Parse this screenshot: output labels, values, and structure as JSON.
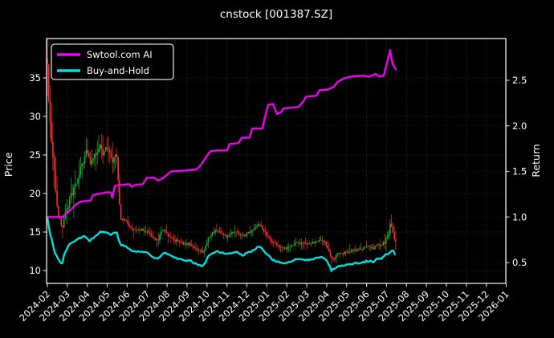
{
  "title": "cnstock [001387.SZ]",
  "colors": {
    "background": "#000000",
    "text": "#ffffff",
    "spine": "#ffffff",
    "tick": "#cccccc",
    "grid": "#a0a0a0",
    "ai_line": "#f000f0",
    "buyhold_line": "#00dede",
    "candle_up": "#12b42f",
    "candle_down": "#f93030"
  },
  "legend": {
    "items": [
      {
        "label": "Swtool.com AI",
        "color": "#f000f0"
      },
      {
        "label": "Buy-and-Hold",
        "color": "#00dede"
      }
    ]
  },
  "chart_data": {
    "type": "line",
    "title": "cnstock [001387.SZ]",
    "x_axis": {
      "tick_labels": [
        "2024-02",
        "2024-03",
        "2024-04",
        "2024-05",
        "2024-06",
        "2024-07",
        "2024-08",
        "2024-09",
        "2024-10",
        "2024-11",
        "2024-12",
        "2025-01",
        "2025-02",
        "2025-03",
        "2025-04",
        "2025-05",
        "2025-06",
        "2025-07",
        "2025-08",
        "2025-09",
        "2025-10",
        "2025-11",
        "2025-12",
        "2026-01"
      ],
      "rotation_deg": 45,
      "data_range": [
        "2024-02",
        "2025-08"
      ]
    },
    "left_axis": {
      "label": "Price",
      "ticks": [
        10,
        15,
        20,
        25,
        30,
        35
      ],
      "range": [
        8.3,
        40.1
      ]
    },
    "right_axis": {
      "label": "Return",
      "ticks": [
        0.5,
        1.0,
        1.5,
        2.0,
        2.5
      ],
      "range": [
        0.27,
        2.96
      ]
    },
    "grid": true,
    "legend_position": "upper-left",
    "series": [
      {
        "name": "Swtool.com AI",
        "type": "line",
        "axis": "right",
        "color": "#f000f0",
        "points": [
          [
            0,
            1.0
          ],
          [
            0.76,
            1.0
          ],
          [
            1.17,
            1.08
          ],
          [
            1.45,
            1.14
          ],
          [
            1.69,
            1.17
          ],
          [
            2.17,
            1.18
          ],
          [
            2.29,
            1.24
          ],
          [
            2.98,
            1.27
          ],
          [
            3.18,
            1.27
          ],
          [
            3.26,
            1.21
          ],
          [
            3.38,
            1.34
          ],
          [
            3.66,
            1.35
          ],
          [
            4.1,
            1.36
          ],
          [
            4.23,
            1.33
          ],
          [
            4.39,
            1.35
          ],
          [
            4.79,
            1.36
          ],
          [
            4.99,
            1.43
          ],
          [
            5.35,
            1.43
          ],
          [
            5.55,
            1.4
          ],
          [
            5.83,
            1.43
          ],
          [
            6.2,
            1.5
          ],
          [
            6.92,
            1.51
          ],
          [
            7.48,
            1.52
          ],
          [
            7.69,
            1.57
          ],
          [
            7.93,
            1.65
          ],
          [
            8.17,
            1.72
          ],
          [
            8.49,
            1.73
          ],
          [
            9.01,
            1.73
          ],
          [
            9.13,
            1.8
          ],
          [
            9.58,
            1.81
          ],
          [
            9.74,
            1.87
          ],
          [
            10.14,
            1.87
          ],
          [
            10.26,
            1.97
          ],
          [
            10.78,
            1.97
          ],
          [
            10.9,
            2.09
          ],
          [
            11.07,
            2.23
          ],
          [
            11.31,
            2.24
          ],
          [
            11.51,
            2.13
          ],
          [
            11.71,
            2.15
          ],
          [
            11.83,
            2.19
          ],
          [
            12.31,
            2.2
          ],
          [
            12.6,
            2.21
          ],
          [
            12.84,
            2.27
          ],
          [
            12.96,
            2.32
          ],
          [
            13.48,
            2.33
          ],
          [
            13.64,
            2.39
          ],
          [
            14.08,
            2.4
          ],
          [
            14.37,
            2.43
          ],
          [
            14.53,
            2.48
          ],
          [
            14.85,
            2.52
          ],
          [
            15.21,
            2.54
          ],
          [
            15.81,
            2.55
          ],
          [
            16.14,
            2.54
          ],
          [
            16.46,
            2.57
          ],
          [
            16.62,
            2.54
          ],
          [
            16.86,
            2.55
          ],
          [
            17.06,
            2.72
          ],
          [
            17.18,
            2.83
          ],
          [
            17.3,
            2.68
          ],
          [
            17.46,
            2.62
          ]
        ]
      },
      {
        "name": "Buy-and-Hold",
        "type": "line",
        "axis": "right",
        "color": "#00dede",
        "points": [
          [
            0,
            1.0
          ],
          [
            0.04,
            0.93
          ],
          [
            0.12,
            0.83
          ],
          [
            0.24,
            0.74
          ],
          [
            0.36,
            0.62
          ],
          [
            0.52,
            0.54
          ],
          [
            0.64,
            0.5
          ],
          [
            0.76,
            0.5
          ],
          [
            0.85,
            0.59
          ],
          [
            1.05,
            0.68
          ],
          [
            1.17,
            0.72
          ],
          [
            1.57,
            0.76
          ],
          [
            1.85,
            0.8
          ],
          [
            2.13,
            0.74
          ],
          [
            2.37,
            0.78
          ],
          [
            2.66,
            0.84
          ],
          [
            2.94,
            0.83
          ],
          [
            3.18,
            0.81
          ],
          [
            3.46,
            0.84
          ],
          [
            3.66,
            0.69
          ],
          [
            3.94,
            0.68
          ],
          [
            4.18,
            0.63
          ],
          [
            4.47,
            0.62
          ],
          [
            4.75,
            0.62
          ],
          [
            4.99,
            0.61
          ],
          [
            5.27,
            0.56
          ],
          [
            5.55,
            0.54
          ],
          [
            5.75,
            0.59
          ],
          [
            5.87,
            0.62
          ],
          [
            6.08,
            0.59
          ],
          [
            6.36,
            0.56
          ],
          [
            6.6,
            0.54
          ],
          [
            6.88,
            0.52
          ],
          [
            7.16,
            0.52
          ],
          [
            7.4,
            0.49
          ],
          [
            7.6,
            0.48
          ],
          [
            7.81,
            0.46
          ],
          [
            8.09,
            0.58
          ],
          [
            8.29,
            0.61
          ],
          [
            8.49,
            0.62
          ],
          [
            8.69,
            0.61
          ],
          [
            8.97,
            0.59
          ],
          [
            9.21,
            0.61
          ],
          [
            9.5,
            0.62
          ],
          [
            9.62,
            0.59
          ],
          [
            9.82,
            0.58
          ],
          [
            10.02,
            0.61
          ],
          [
            10.3,
            0.63
          ],
          [
            10.62,
            0.68
          ],
          [
            10.82,
            0.63
          ],
          [
            11.02,
            0.59
          ],
          [
            11.23,
            0.54
          ],
          [
            11.43,
            0.52
          ],
          [
            11.63,
            0.5
          ],
          [
            11.91,
            0.49
          ],
          [
            12.19,
            0.5
          ],
          [
            12.43,
            0.54
          ],
          [
            12.71,
            0.53
          ],
          [
            13.11,
            0.53
          ],
          [
            13.52,
            0.55
          ],
          [
            13.72,
            0.56
          ],
          [
            13.92,
            0.54
          ],
          [
            14.04,
            0.51
          ],
          [
            14.24,
            0.41
          ],
          [
            14.53,
            0.46
          ],
          [
            14.93,
            0.47
          ],
          [
            15.33,
            0.49
          ],
          [
            15.73,
            0.5
          ],
          [
            16.13,
            0.52
          ],
          [
            16.33,
            0.5
          ],
          [
            16.53,
            0.54
          ],
          [
            16.74,
            0.54
          ],
          [
            16.94,
            0.58
          ],
          [
            17.14,
            0.61
          ],
          [
            17.34,
            0.63
          ],
          [
            17.42,
            0.59
          ]
        ]
      },
      {
        "name": "cnstock OHLC",
        "type": "candlestick",
        "axis": "left",
        "up_color": "#12b42f",
        "down_color": "#f93030",
        "close_keypoints": [
          [
            0,
            36.5
          ],
          [
            0.05,
            33.0
          ],
          [
            0.12,
            30.0
          ],
          [
            0.2,
            27.0
          ],
          [
            0.3,
            24.0
          ],
          [
            0.4,
            21.0
          ],
          [
            0.5,
            18.5
          ],
          [
            0.6,
            16.5
          ],
          [
            0.72,
            15.2
          ],
          [
            0.85,
            16.8
          ],
          [
            1.05,
            18.5
          ],
          [
            1.17,
            19.5
          ],
          [
            1.45,
            21.5
          ],
          [
            1.7,
            23.5
          ],
          [
            1.85,
            24.5
          ],
          [
            2.0,
            25.8
          ],
          [
            2.13,
            24.0
          ],
          [
            2.37,
            24.8
          ],
          [
            2.66,
            26.3
          ],
          [
            2.8,
            25.0
          ],
          [
            2.94,
            26.0
          ],
          [
            3.1,
            25.0
          ],
          [
            3.3,
            24.0
          ],
          [
            3.46,
            25.5
          ],
          [
            3.6,
            19.5
          ],
          [
            3.66,
            16.8
          ],
          [
            3.94,
            16.5
          ],
          [
            4.18,
            15.5
          ],
          [
            4.47,
            15.3
          ],
          [
            4.75,
            15.3
          ],
          [
            4.99,
            15.0
          ],
          [
            5.27,
            14.2
          ],
          [
            5.55,
            13.8
          ],
          [
            5.7,
            15.0
          ],
          [
            5.87,
            15.3
          ],
          [
            6.08,
            14.6
          ],
          [
            6.36,
            14.0
          ],
          [
            6.6,
            13.7
          ],
          [
            6.88,
            13.4
          ],
          [
            7.16,
            13.4
          ],
          [
            7.4,
            12.9
          ],
          [
            7.6,
            12.7
          ],
          [
            7.81,
            12.4
          ],
          [
            8.09,
            14.3
          ],
          [
            8.29,
            14.9
          ],
          [
            8.49,
            15.1
          ],
          [
            8.69,
            14.9
          ],
          [
            8.97,
            14.5
          ],
          [
            9.21,
            14.9
          ],
          [
            9.5,
            15.1
          ],
          [
            9.62,
            14.6
          ],
          [
            9.82,
            14.4
          ],
          [
            10.02,
            14.9
          ],
          [
            10.3,
            15.3
          ],
          [
            10.62,
            16.0
          ],
          [
            10.82,
            15.3
          ],
          [
            11.02,
            14.6
          ],
          [
            11.23,
            13.8
          ],
          [
            11.43,
            13.4
          ],
          [
            11.63,
            13.1
          ],
          [
            11.91,
            12.9
          ],
          [
            12.19,
            13.1
          ],
          [
            12.43,
            13.7
          ],
          [
            12.71,
            13.5
          ],
          [
            13.11,
            13.5
          ],
          [
            13.52,
            13.8
          ],
          [
            13.72,
            13.9
          ],
          [
            13.92,
            13.6
          ],
          [
            14.04,
            13.1
          ],
          [
            14.24,
            11.3
          ],
          [
            14.53,
            12.1
          ],
          [
            14.93,
            12.3
          ],
          [
            15.33,
            12.6
          ],
          [
            15.73,
            12.8
          ],
          [
            16.13,
            13.1
          ],
          [
            16.33,
            12.8
          ],
          [
            16.53,
            13.3
          ],
          [
            16.74,
            13.3
          ],
          [
            16.94,
            13.8
          ],
          [
            17.14,
            15.0
          ],
          [
            17.2,
            16.2
          ],
          [
            17.28,
            15.2
          ],
          [
            17.38,
            14.0
          ],
          [
            17.46,
            13.6
          ]
        ]
      }
    ]
  }
}
